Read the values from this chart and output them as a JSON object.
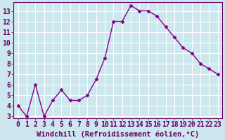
{
  "x": [
    0,
    1,
    2,
    3,
    4,
    5,
    6,
    7,
    8,
    9,
    10,
    11,
    12,
    13,
    14,
    15,
    16,
    17,
    18,
    19,
    20,
    21,
    22,
    23
  ],
  "y": [
    4,
    3,
    6,
    3,
    4.5,
    5.5,
    4.5,
    4.5,
    5,
    6.5,
    8.5,
    12,
    12,
    13.5,
    13,
    13,
    12.5,
    11.5,
    10.5,
    9.5,
    9,
    8,
    7.5,
    7
  ],
  "line_color": "#880088",
  "marker": "D",
  "marker_size": 2.5,
  "bg_color": "#cce8ee",
  "grid_color": "#ffffff",
  "xlabel": "Windchill (Refroidissement éolien,°C)",
  "xlim": [
    -0.5,
    23.5
  ],
  "ylim": [
    2.8,
    13.8
  ],
  "yticks": [
    3,
    4,
    5,
    6,
    7,
    8,
    9,
    10,
    11,
    12,
    13
  ],
  "xticks": [
    0,
    1,
    2,
    3,
    4,
    5,
    6,
    7,
    8,
    9,
    10,
    11,
    12,
    13,
    14,
    15,
    16,
    17,
    18,
    19,
    20,
    21,
    22,
    23
  ],
  "axis_color": "#660066",
  "xlabel_fontsize": 7.5,
  "tick_fontsize": 7,
  "line_width": 1.0
}
